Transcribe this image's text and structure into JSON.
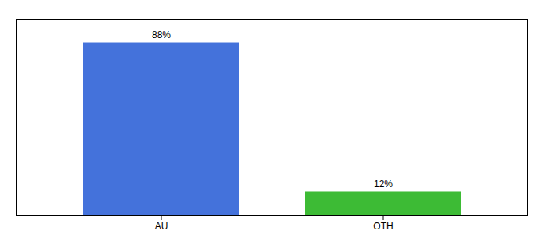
{
  "chart_data": {
    "type": "bar",
    "categories": [
      "AU",
      "OTH"
    ],
    "values": [
      88,
      12
    ],
    "value_labels": [
      "88%",
      "12%"
    ],
    "colors": [
      "#4472db",
      "#3dbb35"
    ],
    "ylim": [
      0,
      100
    ],
    "data_labels": true,
    "tick_labels": "x"
  }
}
